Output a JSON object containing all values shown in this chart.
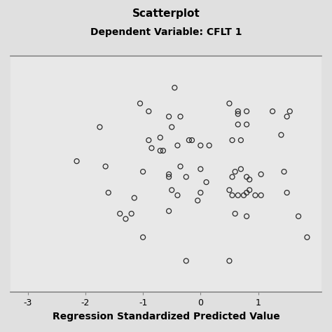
{
  "title": "Scatterplot",
  "subtitle": "Dependent Variable: CFLT 1",
  "xlabel": "Regression Standardized Predicted Value",
  "xlim": [
    -3.3,
    2.1
  ],
  "xticks": [
    -3,
    -2,
    -1,
    0,
    1
  ],
  "background_color": "#e8e8e8",
  "fig_color": "#e0e0e0",
  "title_fontsize": 11,
  "subtitle_fontsize": 10,
  "xlabel_fontsize": 10,
  "marker_size": 5,
  "points": [
    [
      -0.45,
      0.93
    ],
    [
      -1.05,
      0.87
    ],
    [
      -0.9,
      0.84
    ],
    [
      -0.55,
      0.82
    ],
    [
      -0.35,
      0.82
    ],
    [
      0.5,
      0.87
    ],
    [
      0.65,
      0.83
    ],
    [
      0.65,
      0.84
    ],
    [
      0.8,
      0.84
    ],
    [
      1.25,
      0.84
    ],
    [
      1.55,
      0.84
    ],
    [
      -1.75,
      0.78
    ],
    [
      -0.5,
      0.78
    ],
    [
      0.65,
      0.79
    ],
    [
      0.8,
      0.79
    ],
    [
      1.5,
      0.82
    ],
    [
      -0.9,
      0.73
    ],
    [
      -0.7,
      0.74
    ],
    [
      -0.85,
      0.7
    ],
    [
      -0.7,
      0.69
    ],
    [
      -0.65,
      0.69
    ],
    [
      -0.4,
      0.71
    ],
    [
      -0.2,
      0.73
    ],
    [
      -0.15,
      0.73
    ],
    [
      0.0,
      0.71
    ],
    [
      0.15,
      0.71
    ],
    [
      0.55,
      0.73
    ],
    [
      0.7,
      0.73
    ],
    [
      1.4,
      0.75
    ],
    [
      -2.15,
      0.65
    ],
    [
      -1.65,
      0.63
    ],
    [
      -1.0,
      0.61
    ],
    [
      -0.35,
      0.63
    ],
    [
      -0.25,
      0.59
    ],
    [
      0.0,
      0.62
    ],
    [
      0.1,
      0.57
    ],
    [
      -0.55,
      0.59
    ],
    [
      -0.55,
      0.6
    ],
    [
      0.55,
      0.59
    ],
    [
      0.6,
      0.61
    ],
    [
      0.7,
      0.62
    ],
    [
      0.8,
      0.59
    ],
    [
      0.85,
      0.58
    ],
    [
      1.05,
      0.6
    ],
    [
      1.45,
      0.61
    ],
    [
      -1.6,
      0.53
    ],
    [
      -1.15,
      0.51
    ],
    [
      -0.5,
      0.54
    ],
    [
      -0.4,
      0.52
    ],
    [
      0.0,
      0.53
    ],
    [
      0.5,
      0.54
    ],
    [
      -0.05,
      0.5
    ],
    [
      0.55,
      0.52
    ],
    [
      0.8,
      0.53
    ],
    [
      0.65,
      0.52
    ],
    [
      0.75,
      0.52
    ],
    [
      0.85,
      0.54
    ],
    [
      0.95,
      0.52
    ],
    [
      1.05,
      0.52
    ],
    [
      1.5,
      0.53
    ],
    [
      -1.4,
      0.45
    ],
    [
      -1.3,
      0.43
    ],
    [
      -1.2,
      0.45
    ],
    [
      -0.55,
      0.46
    ],
    [
      0.6,
      0.45
    ],
    [
      0.8,
      0.44
    ],
    [
      1.7,
      0.44
    ],
    [
      -1.0,
      0.36
    ],
    [
      -0.25,
      0.27
    ],
    [
      0.5,
      0.27
    ],
    [
      1.85,
      0.36
    ]
  ]
}
